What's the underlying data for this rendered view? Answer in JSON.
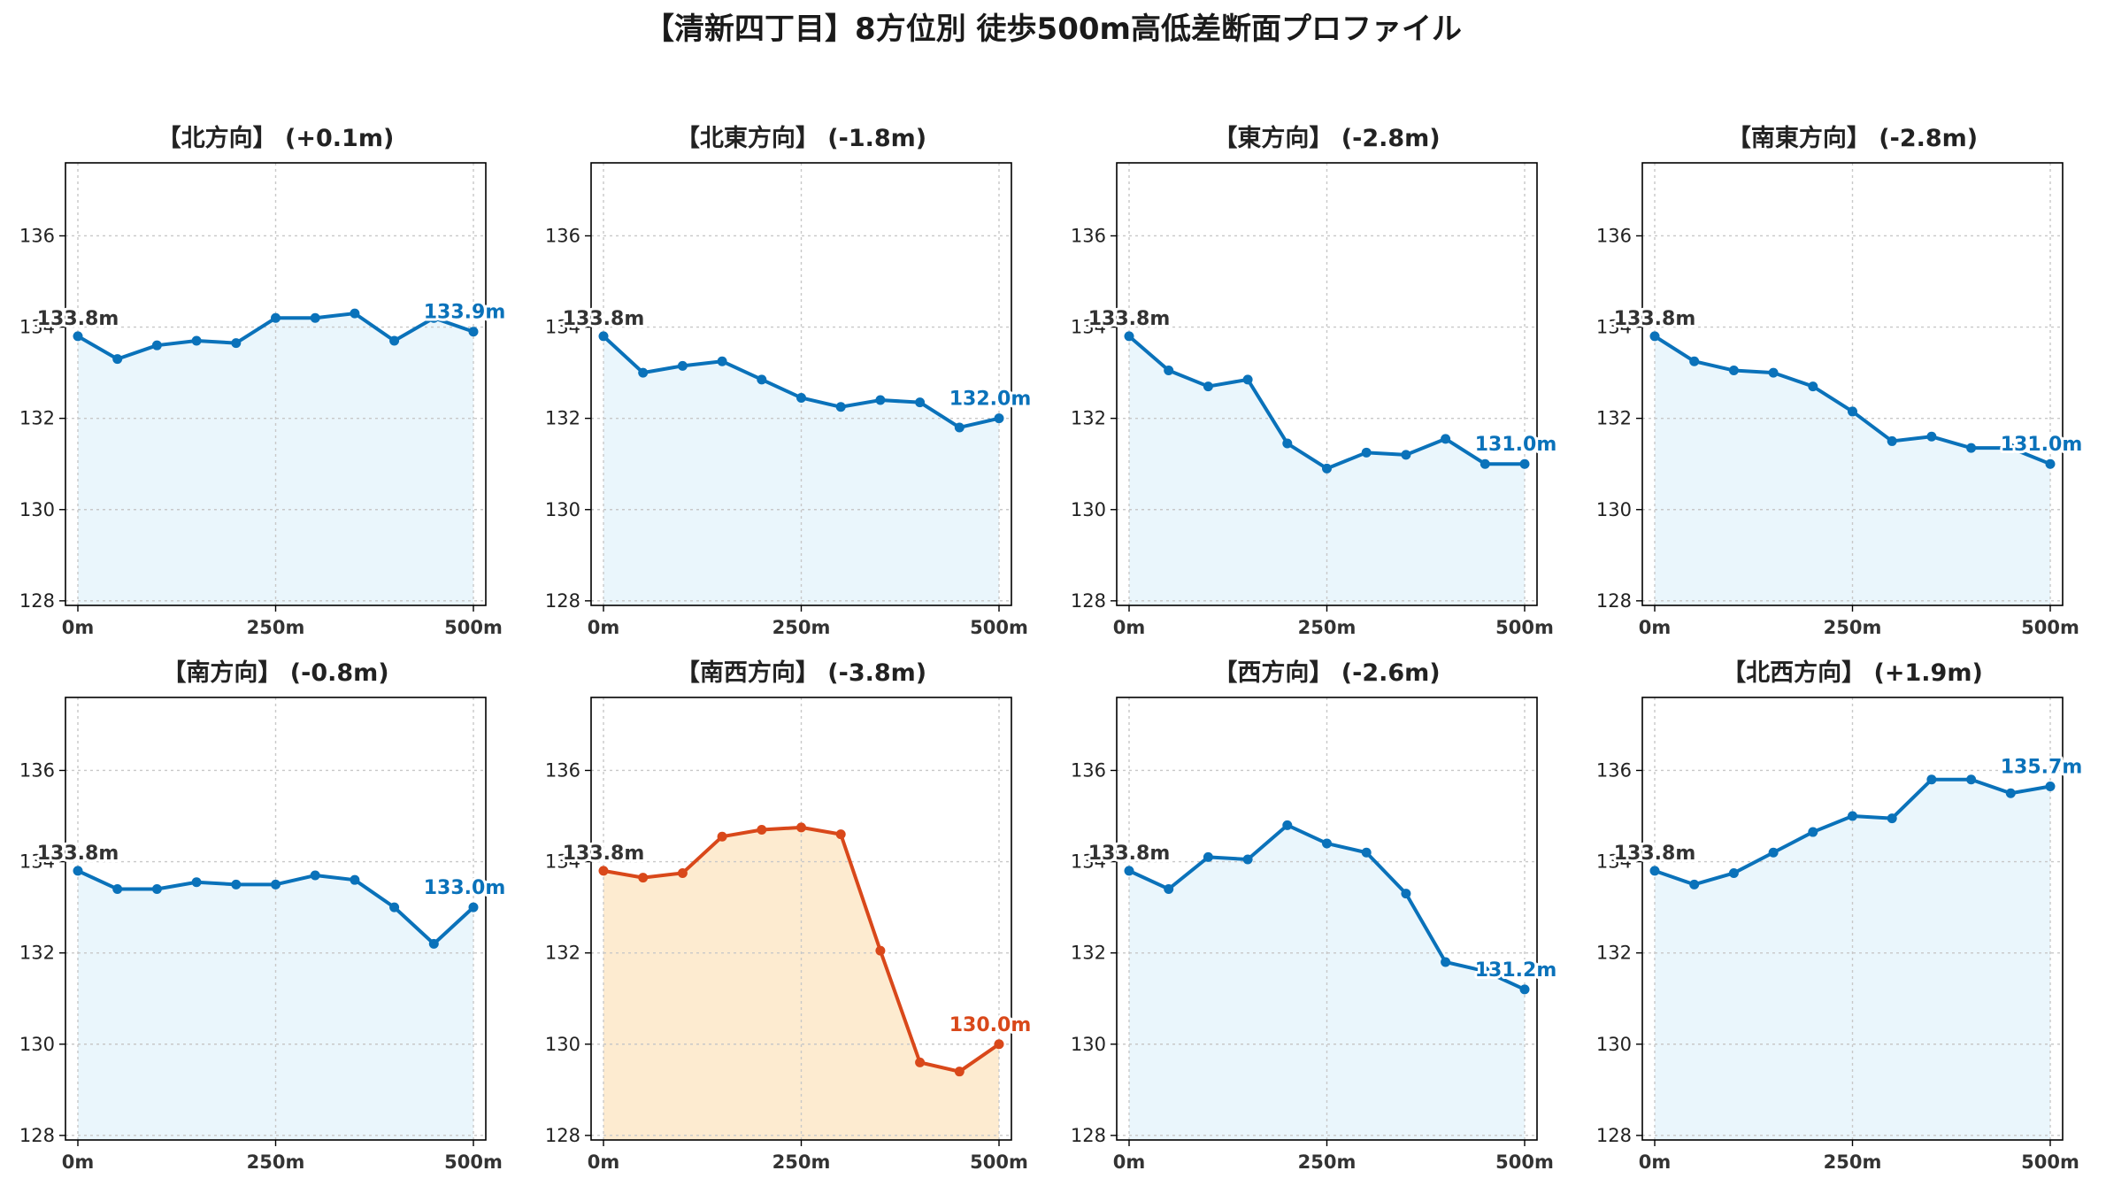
{
  "title": "【清新四丁目】8方位別 徒歩500m高低差断面プロファイル",
  "colors": {
    "normal_line": "#0A72BA",
    "normal_fill": "#EAF6FC",
    "highlight_line": "#D9481A",
    "highlight_fill": "#FDEBD0",
    "grid": "#C8C8C8"
  },
  "chart_data": [
    {
      "type": "area",
      "title": "【北方向】 (+0.1m)",
      "x": [
        0,
        50,
        100,
        150,
        200,
        250,
        300,
        350,
        400,
        450,
        500
      ],
      "y": [
        133.8,
        133.3,
        133.6,
        133.7,
        133.65,
        134.2,
        134.2,
        134.3,
        133.7,
        134.2,
        133.9
      ],
      "xticks": [
        "0m",
        "250m",
        "500m"
      ],
      "yticks": [
        "128",
        "130",
        "132",
        "134",
        "136"
      ],
      "xlim": [
        0,
        500
      ],
      "ylim": [
        127.9,
        137.6
      ],
      "start_label": "133.8m",
      "end_label": "133.9m",
      "highlight": false
    },
    {
      "type": "area",
      "title": "【北東方向】 (-1.8m)",
      "x": [
        0,
        50,
        100,
        150,
        200,
        250,
        300,
        350,
        400,
        450,
        500
      ],
      "y": [
        133.8,
        133.0,
        133.15,
        133.25,
        132.85,
        132.45,
        132.25,
        132.4,
        132.35,
        131.8,
        132.0
      ],
      "xticks": [
        "0m",
        "250m",
        "500m"
      ],
      "yticks": [
        "128",
        "130",
        "132",
        "134",
        "136"
      ],
      "xlim": [
        0,
        500
      ],
      "ylim": [
        127.9,
        137.6
      ],
      "start_label": "133.8m",
      "end_label": "132.0m",
      "highlight": false
    },
    {
      "type": "area",
      "title": "【東方向】 (-2.8m)",
      "x": [
        0,
        50,
        100,
        150,
        200,
        250,
        300,
        350,
        400,
        450,
        500
      ],
      "y": [
        133.8,
        133.05,
        132.7,
        132.85,
        131.45,
        130.9,
        131.25,
        131.2,
        131.55,
        131.0,
        131.0
      ],
      "xticks": [
        "0m",
        "250m",
        "500m"
      ],
      "yticks": [
        "128",
        "130",
        "132",
        "134",
        "136"
      ],
      "xlim": [
        0,
        500
      ],
      "ylim": [
        127.9,
        137.6
      ],
      "start_label": "133.8m",
      "end_label": "131.0m",
      "highlight": false
    },
    {
      "type": "area",
      "title": "【南東方向】 (-2.8m)",
      "x": [
        0,
        50,
        100,
        150,
        200,
        250,
        300,
        350,
        400,
        450,
        500
      ],
      "y": [
        133.8,
        133.25,
        133.05,
        133.0,
        132.7,
        132.15,
        131.5,
        131.6,
        131.35,
        131.35,
        131.0
      ],
      "xticks": [
        "0m",
        "250m",
        "500m"
      ],
      "yticks": [
        "128",
        "130",
        "132",
        "134",
        "136"
      ],
      "xlim": [
        0,
        500
      ],
      "ylim": [
        127.9,
        137.6
      ],
      "start_label": "133.8m",
      "end_label": "131.0m",
      "highlight": false
    },
    {
      "type": "area",
      "title": "【南方向】 (-0.8m)",
      "x": [
        0,
        50,
        100,
        150,
        200,
        250,
        300,
        350,
        400,
        450,
        500
      ],
      "y": [
        133.8,
        133.4,
        133.4,
        133.55,
        133.5,
        133.5,
        133.7,
        133.6,
        133.0,
        132.2,
        133.0
      ],
      "xticks": [
        "0m",
        "250m",
        "500m"
      ],
      "yticks": [
        "128",
        "130",
        "132",
        "134",
        "136"
      ],
      "xlim": [
        0,
        500
      ],
      "ylim": [
        127.9,
        137.6
      ],
      "start_label": "133.8m",
      "end_label": "133.0m",
      "highlight": false
    },
    {
      "type": "area",
      "title": "【南西方向】 (-3.8m)",
      "x": [
        0,
        50,
        100,
        150,
        200,
        250,
        300,
        350,
        400,
        450,
        500
      ],
      "y": [
        133.8,
        133.65,
        133.75,
        134.55,
        134.7,
        134.75,
        134.6,
        132.05,
        129.6,
        129.4,
        130.0
      ],
      "xticks": [
        "0m",
        "250m",
        "500m"
      ],
      "yticks": [
        "128",
        "130",
        "132",
        "134",
        "136"
      ],
      "xlim": [
        0,
        500
      ],
      "ylim": [
        127.9,
        137.6
      ],
      "start_label": "133.8m",
      "end_label": "130.0m",
      "highlight": true
    },
    {
      "type": "area",
      "title": "【西方向】 (-2.6m)",
      "x": [
        0,
        50,
        100,
        150,
        200,
        250,
        300,
        350,
        400,
        450,
        500
      ],
      "y": [
        133.8,
        133.4,
        134.1,
        134.05,
        134.8,
        134.4,
        134.2,
        133.3,
        131.8,
        131.6,
        131.2
      ],
      "xticks": [
        "0m",
        "250m",
        "500m"
      ],
      "yticks": [
        "128",
        "130",
        "132",
        "134",
        "136"
      ],
      "xlim": [
        0,
        500
      ],
      "ylim": [
        127.9,
        137.6
      ],
      "start_label": "133.8m",
      "end_label": "131.2m",
      "highlight": false
    },
    {
      "type": "area",
      "title": "【北西方向】 (+1.9m)",
      "x": [
        0,
        50,
        100,
        150,
        200,
        250,
        300,
        350,
        400,
        450,
        500
      ],
      "y": [
        133.8,
        133.5,
        133.75,
        134.2,
        134.65,
        135.0,
        134.95,
        135.8,
        135.8,
        135.5,
        135.65
      ],
      "xticks": [
        "0m",
        "250m",
        "500m"
      ],
      "yticks": [
        "128",
        "130",
        "132",
        "134",
        "136"
      ],
      "xlim": [
        0,
        500
      ],
      "ylim": [
        127.9,
        137.6
      ],
      "start_label": "133.8m",
      "end_label": "135.7m",
      "highlight": false
    }
  ]
}
